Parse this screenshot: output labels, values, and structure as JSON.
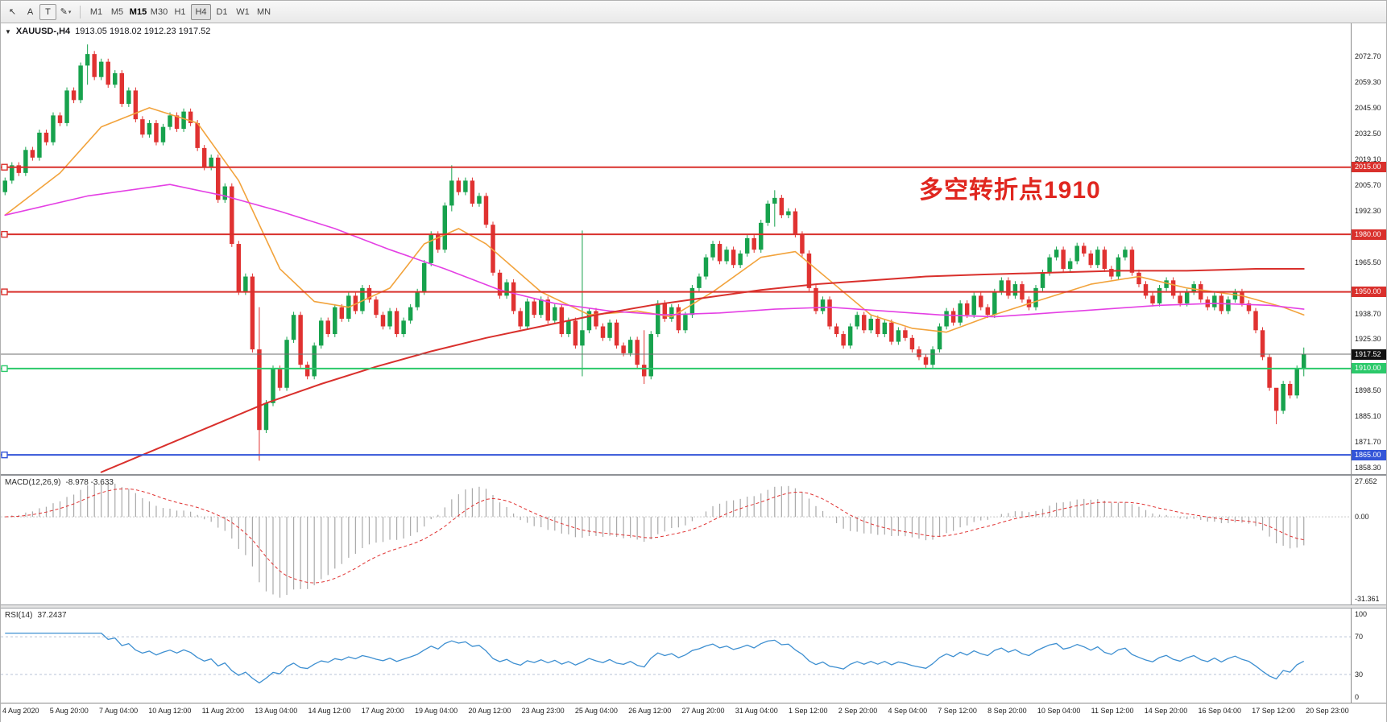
{
  "colors": {
    "up": "#17a24d",
    "down": "#e03231",
    "macd_hist": "#a9a9a9",
    "macd_signal": "#e03231",
    "rsi_line": "#3d8fd1",
    "current_price_chip": "#111111"
  },
  "toolbar": {
    "tools": [
      {
        "name": "cursor",
        "glyph": "↖"
      },
      {
        "name": "text-a",
        "glyph": "A"
      },
      {
        "name": "text-box",
        "glyph": "T"
      },
      {
        "name": "draw",
        "glyph": "✎"
      }
    ],
    "timeframes": [
      "M1",
      "M5",
      "M15",
      "M30",
      "H1",
      "H4",
      "D1",
      "W1",
      "MN"
    ],
    "bold_timeframe": "M15",
    "active_timeframe": "H4"
  },
  "chart": {
    "title": "XAUUSD-,H4",
    "ohlc": "1913.05 1918.02 1912.23 1917.52",
    "annotation": "多空转折点1910",
    "current_price": {
      "value": 1917.52,
      "label": "1917.52"
    },
    "levels": [
      {
        "price": 2015.0,
        "label": "2015.00",
        "color": "#d9302c",
        "width": 2
      },
      {
        "price": 1980.0,
        "label": "1980.00",
        "color": "#d9302c",
        "width": 2
      },
      {
        "price": 1950.0,
        "label": "1950.00",
        "color": "#d9302c",
        "width": 2
      },
      {
        "price": 1910.0,
        "label": "1910.00",
        "color": "#2bc96a",
        "width": 2
      },
      {
        "price": 1865.0,
        "label": "1865.00",
        "color": "#3355d8",
        "width": 2
      }
    ],
    "axis_labels": [
      "2072.70",
      "2059.30",
      "2045.90",
      "2032.50",
      "2019.10",
      "2005.70",
      "1992.30",
      "1978.90",
      "1965.50",
      "1952.10",
      "1938.70",
      "1925.30",
      "1911.90",
      "1898.50",
      "1885.10",
      "1871.70",
      "1858.30"
    ]
  },
  "macd": {
    "name": "MACD(12,26,9)",
    "values": "-8.978 -3.633",
    "axis": [
      "27.652",
      "0.00",
      "-31.361"
    ]
  },
  "rsi": {
    "name": "RSI(14)",
    "value": "37.2437",
    "axis": [
      "100",
      "70",
      "30",
      "0"
    ],
    "levels": [
      70,
      30
    ]
  },
  "time_axis": [
    "4 Aug 2020",
    "5 Aug 20:00",
    "7 Aug 04:00",
    "10 Aug 12:00",
    "11 Aug 20:00",
    "13 Aug 04:00",
    "14 Aug 12:00",
    "17 Aug 20:00",
    "19 Aug 04:00",
    "20 Aug 12:00",
    "23 Aug 23:00",
    "25 Aug 04:00",
    "26 Aug 12:00",
    "27 Aug 20:00",
    "31 Aug 04:00",
    "1 Sep 12:00",
    "2 Sep 20:00",
    "4 Sep 04:00",
    "7 Sep 12:00",
    "8 Sep 20:00",
    "10 Sep 04:00",
    "11 Sep 12:00",
    "14 Sep 20:00",
    "16 Sep 04:00",
    "17 Sep 12:00",
    "20 Sep 23:00"
  ],
  "chart_data": {
    "type": "candlestick",
    "symbol": "XAUUSD",
    "timeframe": "H4",
    "price_min": 1855,
    "price_max": 2090,
    "closes": [
      2008,
      2016,
      2012,
      2024,
      2020,
      2033,
      2028,
      2042,
      2038,
      2055,
      2050,
      2068,
      2074,
      2062,
      2070,
      2058,
      2064,
      2048,
      2055,
      2040,
      2032,
      2038,
      2028,
      2036,
      2042,
      2035,
      2044,
      2038,
      2025,
      2015,
      2020,
      1998,
      2005,
      1975,
      1950,
      1958,
      1920,
      1878,
      1892,
      1910,
      1900,
      1925,
      1938,
      1912,
      1906,
      1922,
      1935,
      1928,
      1942,
      1936,
      1948,
      1940,
      1952,
      1946,
      1938,
      1932,
      1940,
      1928,
      1935,
      1942,
      1950,
      1965,
      1980,
      1972,
      1995,
      2008,
      2002,
      2008,
      1996,
      2000,
      1985,
      1960,
      1948,
      1955,
      1940,
      1932,
      1945,
      1938,
      1946,
      1935,
      1942,
      1928,
      1935,
      1922,
      1930,
      1940,
      1932,
      1926,
      1934,
      1922,
      1918,
      1925,
      1912,
      1906,
      1928,
      1944,
      1936,
      1942,
      1930,
      1938,
      1952,
      1958,
      1968,
      1975,
      1966,
      1972,
      1964,
      1970,
      1978,
      1972,
      1986,
      1996,
      1999,
      1990,
      1992,
      1980,
      1970,
      1952,
      1940,
      1946,
      1932,
      1928,
      1922,
      1932,
      1938,
      1930,
      1936,
      1928,
      1934,
      1924,
      1930,
      1926,
      1920,
      1916,
      1912,
      1920,
      1932,
      1940,
      1934,
      1944,
      1938,
      1948,
      1942,
      1938,
      1950,
      1956,
      1948,
      1954,
      1946,
      1942,
      1952,
      1960,
      1968,
      1972,
      1962,
      1966,
      1974,
      1970,
      1964,
      1972,
      1962,
      1958,
      1968,
      1972,
      1960,
      1954,
      1948,
      1944,
      1952,
      1956,
      1948,
      1944,
      1950,
      1954,
      1946,
      1942,
      1948,
      1940,
      1946,
      1950,
      1944,
      1940,
      1930,
      1916,
      1900,
      1888,
      1902,
      1896,
      1910,
      1917.5
    ],
    "wick_overrides": {
      "12": [
        2079,
        2058
      ],
      "37": [
        1942,
        1862
      ],
      "65": [
        2016,
        1992
      ],
      "84": [
        1982,
        1906
      ],
      "93": [
        1930,
        1902
      ],
      "112": [
        2003,
        1984
      ],
      "185": [
        1898,
        1881
      ],
      "189": [
        1921,
        1906
      ]
    },
    "moving_averages": [
      {
        "name": "ma-fast-orange",
        "color": "#f2a33c",
        "width": 1.6,
        "points": [
          [
            0,
            1990
          ],
          [
            8,
            2012
          ],
          [
            14,
            2036
          ],
          [
            21,
            2046
          ],
          [
            28,
            2038
          ],
          [
            34,
            2008
          ],
          [
            40,
            1962
          ],
          [
            45,
            1945
          ],
          [
            50,
            1942
          ],
          [
            56,
            1952
          ],
          [
            61,
            1975
          ],
          [
            66,
            1983
          ],
          [
            70,
            1975
          ],
          [
            78,
            1950
          ],
          [
            85,
            1938
          ],
          [
            92,
            1940
          ],
          [
            97,
            1937
          ],
          [
            103,
            1950
          ],
          [
            110,
            1968
          ],
          [
            115,
            1971
          ],
          [
            120,
            1956
          ],
          [
            126,
            1938
          ],
          [
            132,
            1931
          ],
          [
            137,
            1929
          ],
          [
            143,
            1937
          ],
          [
            150,
            1945
          ],
          [
            158,
            1954
          ],
          [
            165,
            1958
          ],
          [
            172,
            1952
          ],
          [
            180,
            1948
          ],
          [
            186,
            1942
          ],
          [
            189,
            1938
          ]
        ]
      },
      {
        "name": "ma-mid-magenta",
        "color": "#e440e4",
        "width": 1.6,
        "points": [
          [
            0,
            1990
          ],
          [
            12,
            2000
          ],
          [
            24,
            2006
          ],
          [
            32,
            2000
          ],
          [
            40,
            1992
          ],
          [
            48,
            1983
          ],
          [
            56,
            1972
          ],
          [
            64,
            1962
          ],
          [
            72,
            1951
          ],
          [
            80,
            1944
          ],
          [
            88,
            1940
          ],
          [
            96,
            1938
          ],
          [
            104,
            1939
          ],
          [
            112,
            1941
          ],
          [
            120,
            1942
          ],
          [
            128,
            1940
          ],
          [
            136,
            1938
          ],
          [
            144,
            1937
          ],
          [
            152,
            1939
          ],
          [
            160,
            1941
          ],
          [
            168,
            1943
          ],
          [
            176,
            1944
          ],
          [
            184,
            1943
          ],
          [
            189,
            1941
          ]
        ]
      },
      {
        "name": "ma-slow-red",
        "color": "#d9302c",
        "width": 2,
        "points": [
          [
            14,
            1856
          ],
          [
            22,
            1868
          ],
          [
            30,
            1880
          ],
          [
            38,
            1892
          ],
          [
            46,
            1902
          ],
          [
            54,
            1911
          ],
          [
            62,
            1919
          ],
          [
            70,
            1926
          ],
          [
            78,
            1932
          ],
          [
            86,
            1938
          ],
          [
            94,
            1943
          ],
          [
            102,
            1947
          ],
          [
            110,
            1951
          ],
          [
            118,
            1954
          ],
          [
            126,
            1956
          ],
          [
            134,
            1958
          ],
          [
            142,
            1959
          ],
          [
            152,
            1960
          ],
          [
            162,
            1961
          ],
          [
            172,
            1961
          ],
          [
            182,
            1962
          ],
          [
            189,
            1962
          ]
        ]
      }
    ]
  }
}
